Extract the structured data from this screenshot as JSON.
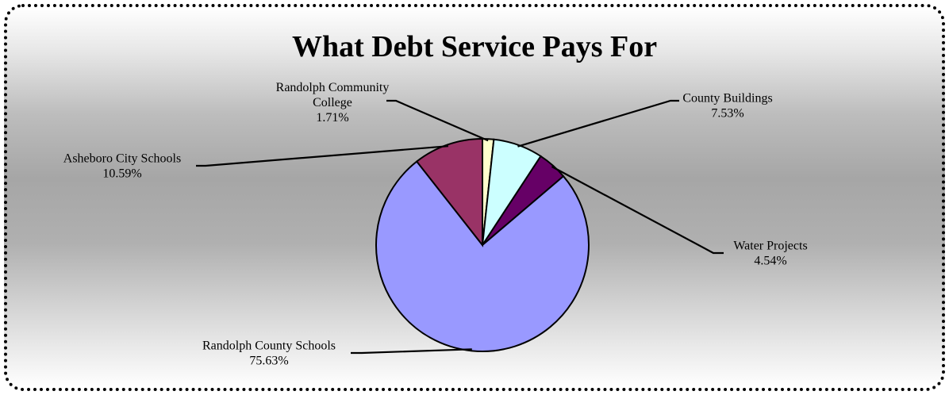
{
  "chart_data": {
    "type": "pie",
    "title": "What Debt Service Pays For",
    "legend": "none",
    "grid": false,
    "start_angle_deg": 0,
    "direction": "clockwise",
    "slices": [
      {
        "label": [
          "Randolph Community",
          "College"
        ],
        "value": 1.71,
        "value_text": "1.71%",
        "color": "#ffffcc"
      },
      {
        "label": [
          "County Buildings"
        ],
        "value": 7.53,
        "value_text": "7.53%",
        "color": "#ccffff"
      },
      {
        "label": [
          "Water Projects"
        ],
        "value": 4.54,
        "value_text": "4.54%",
        "color": "#660066"
      },
      {
        "label": [
          "Randolph County Schools"
        ],
        "value": 75.63,
        "value_text": "75.63%",
        "color": "#9999ff"
      },
      {
        "label": [
          "Asheboro City Schools"
        ],
        "value": 10.59,
        "value_text": "10.59%",
        "color": "#993366"
      }
    ]
  }
}
